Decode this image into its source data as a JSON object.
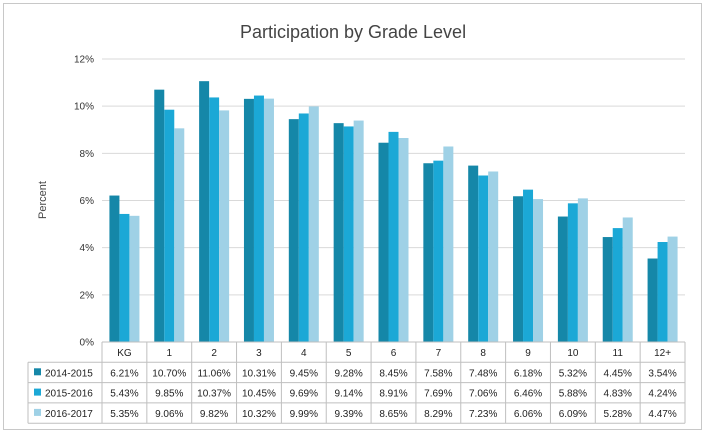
{
  "chart_data": {
    "type": "bar",
    "title": "Participation by Grade Level",
    "xlabel": "",
    "ylabel": "Percent",
    "ylim": [
      0,
      12
    ],
    "yticks": [
      "0%",
      "2%",
      "4%",
      "6%",
      "8%",
      "10%",
      "12%"
    ],
    "grid": true,
    "legend": "data-table-left",
    "categories": [
      "KG",
      "1",
      "2",
      "3",
      "4",
      "5",
      "6",
      "7",
      "8",
      "9",
      "10",
      "11",
      "12+"
    ],
    "series": [
      {
        "name": "2014-2015",
        "color": "#1587a8",
        "values": [
          6.21,
          10.7,
          11.06,
          10.31,
          9.45,
          9.28,
          8.45,
          7.58,
          7.48,
          6.18,
          5.32,
          4.45,
          3.54
        ],
        "labels": [
          "6.21%",
          "10.70%",
          "11.06%",
          "10.31%",
          "9.45%",
          "9.28%",
          "8.45%",
          "7.58%",
          "7.48%",
          "6.18%",
          "5.32%",
          "4.45%",
          "3.54%"
        ]
      },
      {
        "name": "2015-2016",
        "color": "#1ba8d6",
        "values": [
          5.43,
          9.85,
          10.37,
          10.45,
          9.69,
          9.14,
          8.91,
          7.69,
          7.06,
          6.46,
          5.88,
          4.83,
          4.24
        ],
        "labels": [
          "5.43%",
          "9.85%",
          "10.37%",
          "10.45%",
          "9.69%",
          "9.14%",
          "8.91%",
          "7.69%",
          "7.06%",
          "6.46%",
          "5.88%",
          "4.83%",
          "4.24%"
        ]
      },
      {
        "name": "2016-2017",
        "color": "#9fd1e6",
        "values": [
          5.35,
          9.06,
          9.82,
          10.32,
          9.99,
          9.39,
          8.65,
          8.29,
          7.23,
          6.06,
          6.09,
          5.28,
          4.47
        ],
        "labels": [
          "5.35%",
          "9.06%",
          "9.82%",
          "10.32%",
          "9.99%",
          "9.39%",
          "8.65%",
          "8.29%",
          "7.23%",
          "6.06%",
          "6.09%",
          "5.28%",
          "4.47%"
        ]
      }
    ]
  }
}
